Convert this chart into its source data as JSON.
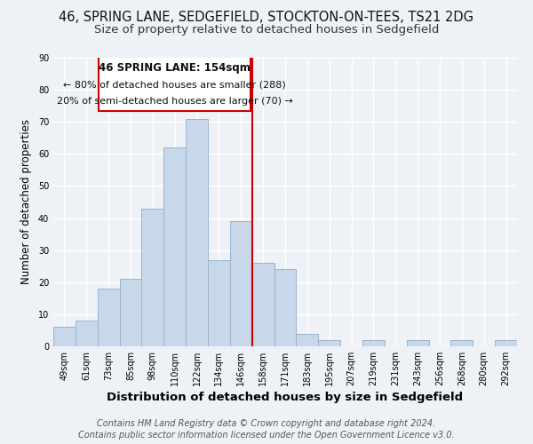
{
  "title": "46, SPRING LANE, SEDGEFIELD, STOCKTON-ON-TEES, TS21 2DG",
  "subtitle": "Size of property relative to detached houses in Sedgefield",
  "xlabel": "Distribution of detached houses by size in Sedgefield",
  "ylabel": "Number of detached properties",
  "bar_color": "#c8d8ea",
  "bar_edge_color": "#9ab4cc",
  "categories": [
    "49sqm",
    "61sqm",
    "73sqm",
    "85sqm",
    "98sqm",
    "110sqm",
    "122sqm",
    "134sqm",
    "146sqm",
    "158sqm",
    "171sqm",
    "183sqm",
    "195sqm",
    "207sqm",
    "219sqm",
    "231sqm",
    "243sqm",
    "256sqm",
    "268sqm",
    "280sqm",
    "292sqm"
  ],
  "values": [
    6,
    8,
    18,
    21,
    43,
    62,
    71,
    27,
    39,
    26,
    24,
    4,
    2,
    0,
    2,
    0,
    2,
    0,
    2,
    0,
    2
  ],
  "vline_x": 8.5,
  "vline_color": "#cc0000",
  "annotation_title": "46 SPRING LANE: 154sqm",
  "annotation_line1": "← 80% of detached houses are smaller (288)",
  "annotation_line2": "20% of semi-detached houses are larger (70) →",
  "annotation_box_color": "#ffffff",
  "annotation_box_edge": "#cc0000",
  "ylim": [
    0,
    90
  ],
  "yticks": [
    0,
    10,
    20,
    30,
    40,
    50,
    60,
    70,
    80,
    90
  ],
  "footer1": "Contains HM Land Registry data © Crown copyright and database right 2024.",
  "footer2": "Contains public sector information licensed under the Open Government Licence v3.0.",
  "background_color": "#eef2f7",
  "grid_color": "#ffffff",
  "title_fontsize": 10.5,
  "subtitle_fontsize": 9.5,
  "xlabel_fontsize": 9.5,
  "ylabel_fontsize": 8.5,
  "tick_fontsize": 7,
  "footer_fontsize": 7,
  "annotation_title_fontsize": 8.5,
  "annotation_line_fontsize": 8.0
}
